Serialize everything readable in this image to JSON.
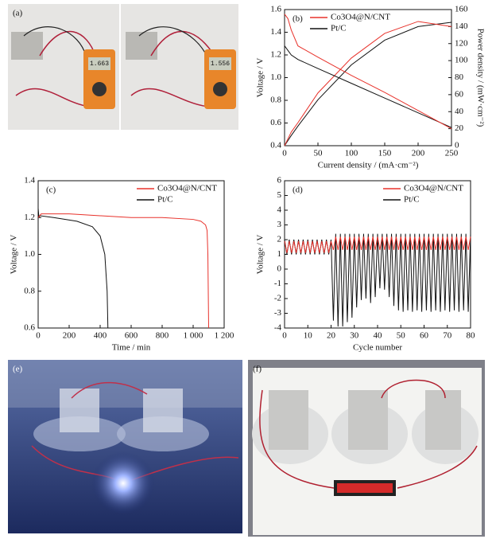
{
  "photos": [
    {
      "label": "(a)",
      "readings": [
        "1.663",
        "1.556"
      ]
    },
    {
      "label": "(e)"
    },
    {
      "label": "(f)"
    }
  ],
  "chart_data": [
    {
      "type": "line",
      "panel_label": "(b)",
      "x_label": "Current density / (mA·cm⁻²)",
      "y_label": "Voltage / V",
      "y2_label": "Power density / (mW·cm⁻²)",
      "x": [
        0,
        5,
        10,
        20,
        50,
        100,
        150,
        200,
        250
      ],
      "series": [
        {
          "name": "Co3O4@N/CNT",
          "color": "#e8322b",
          "values": [
            1.56,
            1.52,
            1.42,
            1.28,
            1.18,
            1.02,
            0.87,
            0.71,
            0.55
          ]
        },
        {
          "name": "Pt/C",
          "color": "#111111",
          "values": [
            1.28,
            1.24,
            1.2,
            1.16,
            1.08,
            0.95,
            0.82,
            0.69,
            0.56
          ]
        },
        {
          "color": "#e8322b",
          "axis": "y2",
          "values": [
            0,
            8,
            16,
            27,
            62,
            103,
            132,
            146,
            140
          ]
        },
        {
          "color": "#111111",
          "axis": "y2",
          "values": [
            0,
            6,
            12,
            23,
            54,
            95,
            124,
            140,
            145
          ]
        }
      ],
      "xlim": [
        0,
        250
      ],
      "xticks": [
        0,
        50,
        100,
        150,
        200,
        250
      ],
      "ylim": [
        0.4,
        1.6
      ],
      "yticks": [
        0.4,
        0.6,
        0.8,
        {
          "value": 1,
          "label": "1.0"
        },
        1.2,
        1.4,
        1.6
      ],
      "y2lim": [
        0,
        160
      ],
      "y2ticks": [
        0,
        20,
        40,
        60,
        80,
        100,
        120,
        140,
        160
      ],
      "legend": "upper left"
    },
    {
      "type": "line",
      "panel_label": "(c)",
      "x_label": "Time / min",
      "y_label": "Voltage / V",
      "series": [
        {
          "name": "Co3O4@N/CNT",
          "color": "#e8322b",
          "x": [
            0,
            20,
            200,
            400,
            600,
            800,
            1000,
            1050,
            1080,
            1090,
            1095,
            1100
          ],
          "values": [
            1.2,
            1.22,
            1.22,
            1.21,
            1.2,
            1.2,
            1.19,
            1.18,
            1.16,
            1.13,
            1.0,
            0.6
          ]
        },
        {
          "name": "Pt/C",
          "color": "#111111",
          "x": [
            0,
            5,
            10,
            100,
            250,
            350,
            400,
            430,
            445,
            450
          ],
          "values": [
            1.25,
            1.2,
            1.21,
            1.2,
            1.18,
            1.15,
            1.1,
            1.0,
            0.8,
            0.6
          ]
        }
      ],
      "xlim": [
        0,
        1200
      ],
      "xticks": [
        0,
        200,
        400,
        600,
        800,
        {
          "value": 1000,
          "label": "1 000"
        },
        {
          "value": 1200,
          "label": "1 200"
        }
      ],
      "ylim": [
        0.6,
        1.4
      ],
      "yticks": [
        0.6,
        0.8,
        {
          "value": 1,
          "label": "1.0"
        },
        1.2,
        1.4
      ],
      "legend": "upper right"
    },
    {
      "type": "line",
      "panel_label": "(d)",
      "x_label": "Cycle number",
      "y_label": "Voltage / V",
      "x": [
        0,
        1,
        2,
        3,
        4,
        5,
        6,
        7,
        8,
        9,
        10,
        11,
        12,
        13,
        14,
        15,
        16,
        17,
        18,
        19,
        20,
        21,
        22,
        23,
        24,
        25,
        26,
        27,
        28,
        29,
        30,
        31,
        32,
        33,
        34,
        35,
        36,
        37,
        38,
        39,
        40,
        41,
        42,
        43,
        44,
        45,
        46,
        47,
        48,
        49,
        50,
        51,
        52,
        53,
        54,
        55,
        56,
        57,
        58,
        59,
        60,
        61,
        62,
        63,
        64,
        65,
        66,
        67,
        68,
        69,
        70,
        71,
        72,
        73,
        74,
        75,
        76,
        77,
        78,
        79,
        80
      ],
      "series": [
        {
          "name": "Co3O4@N/CNT",
          "color": "#e8322b",
          "values": [
            1.9,
            1.1,
            1.9,
            1.1,
            1.9,
            1.1,
            1.9,
            1.1,
            1.9,
            1.1,
            1.9,
            1.1,
            1.9,
            1.1,
            1.9,
            1.1,
            1.9,
            1.1,
            1.9,
            1.1,
            1.9,
            1.3,
            2.2,
            1.3,
            2.2,
            1.3,
            2.2,
            1.3,
            2.2,
            1.3,
            2.2,
            1.3,
            2.2,
            1.3,
            2.2,
            1.3,
            2.2,
            1.3,
            2.2,
            1.3,
            2.2,
            1.3,
            2.2,
            1.3,
            2.2,
            1.3,
            2.2,
            1.3,
            2.2,
            1.3,
            2.2,
            1.3,
            2.2,
            1.3,
            2.2,
            1.3,
            2.2,
            1.3,
            2.2,
            1.3,
            2.2,
            1.3,
            2.2,
            1.3,
            2.2,
            1.3,
            2.2,
            1.3,
            2.2,
            1.3,
            2.2,
            1.3,
            2.2,
            1.3,
            2.2,
            1.3,
            2.2,
            1.3,
            2.2,
            1.3,
            2.2
          ]
        },
        {
          "name": "Pt/C",
          "color": "#111111",
          "values": [
            2,
            1,
            2,
            1,
            2,
            1,
            2,
            1,
            2,
            1,
            2,
            1,
            2,
            1,
            2,
            1,
            2,
            1,
            2,
            1,
            2,
            -3.5,
            2.4,
            -3.9,
            2.4,
            -3.9,
            2.4,
            -3.6,
            2.4,
            -3.3,
            2.4,
            -2.6,
            2.4,
            -2.1,
            2.4,
            -2.0,
            2.4,
            -2.3,
            2.4,
            -1.9,
            2.4,
            -1.3,
            2.4,
            -1.4,
            2.4,
            -1.9,
            2.4,
            -2.5,
            2.4,
            -2.8,
            2.4,
            -2.9,
            2.4,
            -2.8,
            2.4,
            -2.9,
            2.4,
            -2.8,
            2.4,
            -2.9,
            2.4,
            -2.8,
            2.4,
            -2.9,
            2.4,
            -2.8,
            2.4,
            -2.9,
            2.4,
            -2.8,
            2.4,
            -2.9,
            2.4,
            -2.8,
            2.4,
            -2.9,
            2.4,
            -2.8,
            2.4,
            -2.9,
            2.4
          ]
        }
      ],
      "xlim": [
        0,
        80
      ],
      "xticks": [
        0,
        10,
        20,
        30,
        40,
        50,
        60,
        70,
        80
      ],
      "ylim": [
        -4,
        6
      ],
      "yticks": [
        -4,
        -3,
        -2,
        -1,
        0,
        1,
        2,
        3,
        4,
        5,
        6
      ],
      "legend": "upper right"
    }
  ]
}
